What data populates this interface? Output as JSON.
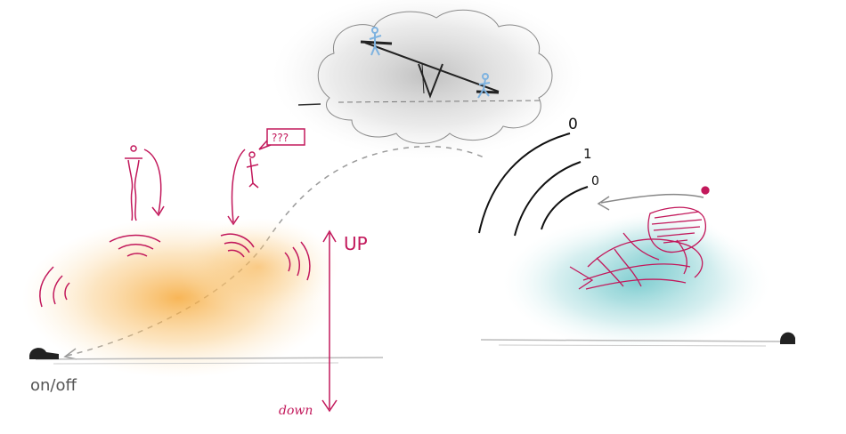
{
  "labels": {
    "up": "UP",
    "down": "down",
    "onoff": "on/off",
    "question": "???",
    "seesaw_low": "0",
    "seesaw_mid": "1",
    "seesaw_high": "0"
  },
  "colors": {
    "magenta": "#c2185b",
    "orange_cloud": "#f7b24f",
    "teal_cloud": "#5fc4c8",
    "gray_cloud": "#9e9e9e",
    "ink": "#222222",
    "dashed": "#9a9a9a",
    "figure_blue": "#7fb3e0"
  }
}
